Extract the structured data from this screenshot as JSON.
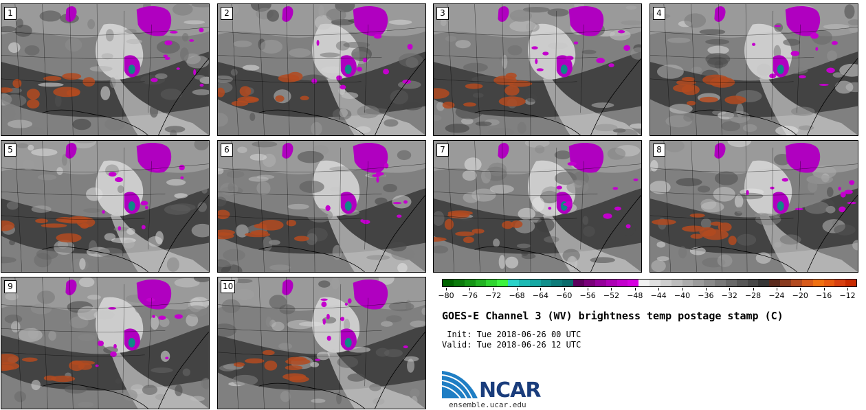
{
  "panels": [
    {
      "label": "1"
    },
    {
      "label": "2"
    },
    {
      "label": "3"
    },
    {
      "label": "4"
    },
    {
      "label": "5"
    },
    {
      "label": "6"
    },
    {
      "label": "7"
    },
    {
      "label": "8"
    },
    {
      "label": "9"
    },
    {
      "label": "10"
    }
  ],
  "colorbar": {
    "colors": [
      "#006400",
      "#0b7a0b",
      "#159515",
      "#22b222",
      "#2fd52f",
      "#3ef33e",
      "#2ad3c9",
      "#1cbab4",
      "#15a8a3",
      "#118f8c",
      "#0e7c7a",
      "#0b6b6b",
      "#5c005c",
      "#7a007a",
      "#94009a",
      "#ad00b5",
      "#c300cd",
      "#d600e0",
      "#f2f2f2",
      "#e0e0e0",
      "#cecece",
      "#bdbdbd",
      "#acacac",
      "#9b9b9b",
      "#8a8a8a",
      "#797979",
      "#686868",
      "#575757",
      "#474747",
      "#363636",
      "#5a2a1e",
      "#8a3b20",
      "#b34a20",
      "#d85a1a",
      "#f07010",
      "#e85a10",
      "#d84010",
      "#c82a00"
    ],
    "tick_values": [
      "−80",
      "−76",
      "−72",
      "−68",
      "−64",
      "−60",
      "−56",
      "−52",
      "−48",
      "−44",
      "−40",
      "−36",
      "−32",
      "−28",
      "−24",
      "−20",
      "−16",
      "−12"
    ]
  },
  "title": "GOES-E Channel 3 (WV) brightness temp postage stamp (C)",
  "init_line": " Init: Tue 2018-06-26 00 UTC",
  "valid_line": "Valid: Tue 2018-06-26 12 UTC",
  "logo_text": "NCAR",
  "url": "ensemble.ucar.edu"
}
